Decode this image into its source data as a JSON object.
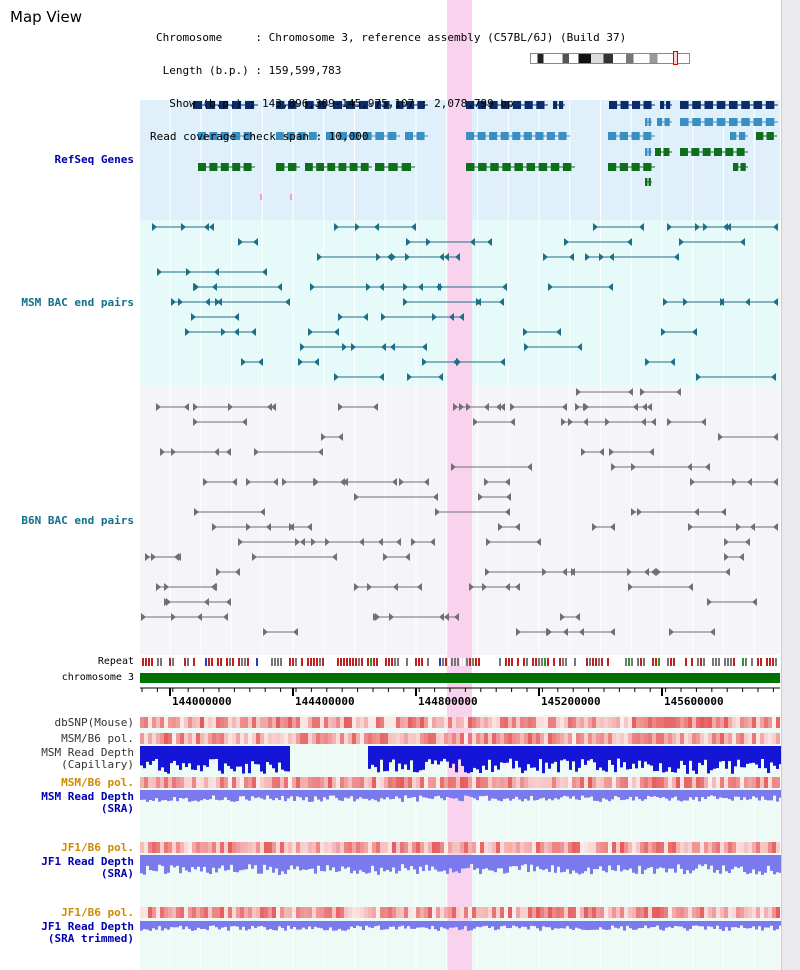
{
  "title": "Map View",
  "info": {
    "chromosome": "Chromosome     : Chromosome 3, reference assembly (C57BL/6J) (Build 37)",
    "length": " Length (b.p.) : 159,599,783",
    "show": "  Show (b.p.) : 143,896,309-145,975,107 : 2,078,799 bp",
    "coverage": "Read coverage check span : 10,000"
  },
  "tracks": {
    "refseq": "RefSeq Genes",
    "msm_bac": "MSM BAC end pairs",
    "b6n_bac": "B6N BAC end pairs",
    "repeat": "Repeat",
    "chromosome": "chromosome 3",
    "dbsnp": "dbSNP(Mouse)",
    "msm_b6_pol_1": "MSM/B6 pol.",
    "msm_depth_cap_1": "MSM Read Depth",
    "msm_depth_cap_2": "(Capillary)",
    "msm_b6_pol_2": "MSM/B6 pol.",
    "msm_depth_sra_1": "MSM Read Depth",
    "msm_depth_sra_2": "(SRA)",
    "jf1_b6_pol_1": "JF1/B6 pol.",
    "jf1_depth_sra_1": "JF1 Read Depth",
    "jf1_depth_sra_2": "(SRA)",
    "jf1_b6_pol_2": "JF1/B6 pol.",
    "jf1_depth_trim_1": "JF1 Read Depth",
    "jf1_depth_trim_2": "(SRA trimmed)"
  },
  "axis": {
    "ticks": [
      "144000000",
      "144400000",
      "144800000",
      "145200000",
      "145600000"
    ]
  },
  "colors": {
    "refseq_bg": "#dff0fb",
    "msm_bg": "#e6fafa",
    "b6n_bg": "#f5f5f9",
    "highlight": "#f9d3ee",
    "chromosome_bar": "#007000",
    "navy": "#0a2c6b",
    "teal": "#3a8fc2",
    "green": "#0f6e1a",
    "msm_pair": "#1e6e86",
    "b6n_pair": "#707070",
    "label_blue": "#0000b0",
    "label_teal": "#10708a",
    "label_orange": "#d08a00"
  }
}
